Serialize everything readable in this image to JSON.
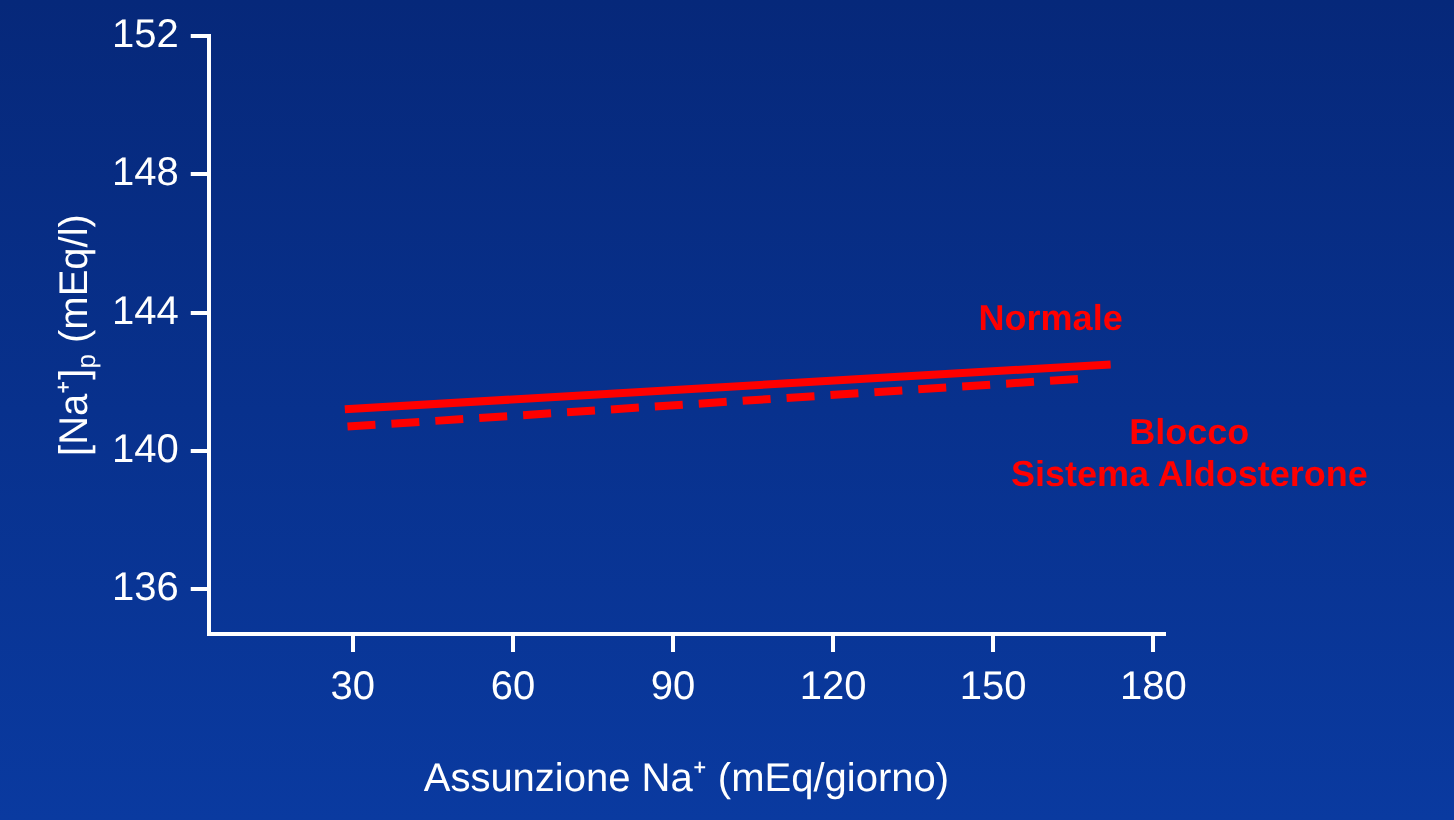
{
  "chart_data": {
    "type": "line",
    "xlabel": "Assunzione Na⁺ (mEq/giorno)",
    "ylabel": "[Na⁺]$_{p}$ (mEq/l)",
    "xlim": [
      3,
      182
    ],
    "xticks": [
      30,
      60,
      90,
      120,
      150,
      180
    ],
    "ylim": [
      134.7,
      152
    ],
    "yticks": [
      136,
      140,
      144,
      148,
      152
    ],
    "grid": false,
    "legend": false,
    "marker": "none",
    "series": [
      {
        "name": "Normale",
        "color": "#ff0000",
        "line_style": "solid",
        "x": [
          28.5,
          172
        ],
        "values": [
          141.2,
          142.5
        ]
      },
      {
        "name": "Blocco\nSistema Aldosterone",
        "color": "#ff0000",
        "line_style": "dashed",
        "x": [
          29,
          168
        ],
        "values": [
          140.7,
          142.1
        ]
      }
    ]
  }
}
